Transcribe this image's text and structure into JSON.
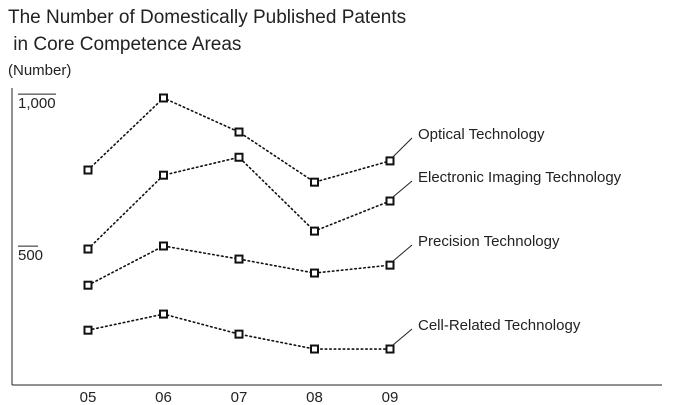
{
  "chart_data": {
    "type": "line",
    "title": "The Number of Domestically Published Patents",
    "subtitle": " in Core Competence Areas",
    "y_label": "(Number)",
    "categories": [
      "05",
      "06",
      "07",
      "08",
      "09"
    ],
    "series": [
      {
        "name": "Optical Technology",
        "color": "#111111",
        "values": [
          770,
          1007,
          895,
          730,
          800
        ]
      },
      {
        "name": "Electronic Imaging Technology",
        "color": "#111111",
        "values": [
          510,
          753,
          812,
          569,
          668
        ]
      },
      {
        "name": "Precision Technology",
        "color": "#111111",
        "values": [
          391,
          520,
          477,
          431,
          457
        ]
      },
      {
        "name": "Cell-Related Technology",
        "color": "#111111",
        "values": [
          243,
          296,
          230,
          181,
          181
        ]
      }
    ],
    "ylim": [
      60,
      1030
    ],
    "yticks": [
      {
        "value": 1000,
        "label": "1,000"
      },
      500
    ],
    "grid": false
  }
}
